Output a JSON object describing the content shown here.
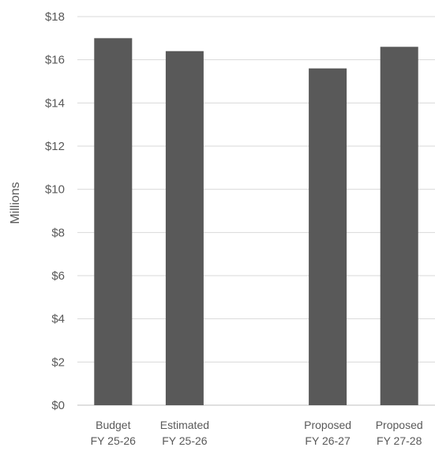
{
  "chart_data": {
    "type": "bar",
    "title": "",
    "xlabel": "",
    "ylabel": "Millions",
    "ylim": [
      0,
      18
    ],
    "yticks": [
      0,
      2,
      4,
      6,
      8,
      10,
      12,
      14,
      16,
      18
    ],
    "ytick_labels": [
      "$0",
      "$2",
      "$4",
      "$6",
      "$8",
      "$10",
      "$12",
      "$14",
      "$16",
      "$18"
    ],
    "grid": true,
    "legend": "none",
    "bar_color": "#595959",
    "categories": [
      {
        "line1": "Budget",
        "line2": "FY 25-26"
      },
      {
        "line1": "Estimated",
        "line2": "FY 25-26"
      },
      {
        "line1": "",
        "line2": ""
      },
      {
        "line1": "Proposed",
        "line2": "FY 26-27"
      },
      {
        "line1": "Proposed",
        "line2": "FY 27-28"
      }
    ],
    "values": [
      17.0,
      16.4,
      null,
      15.6,
      16.6
    ]
  }
}
